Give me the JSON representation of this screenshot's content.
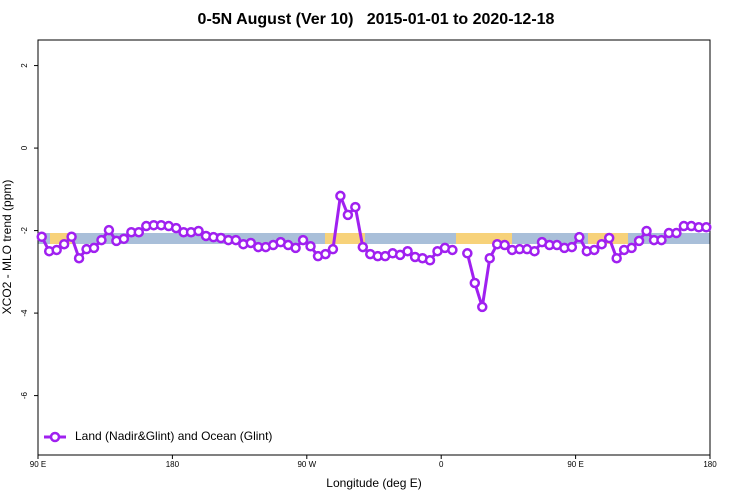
{
  "chart_data": {
    "type": "line",
    "title": "0-5N August (Ver 10)   2015-01-01 to 2020-12-18",
    "x_label": "Longitude (deg E)",
    "y_label": "XCO2 - MLO trend (ppm)",
    "xlim": [
      90,
      540
    ],
    "ylim": [
      -7.44,
      2.62
    ],
    "xticks": [
      {
        "value": 90,
        "label": "90 E"
      },
      180,
      {
        "value": 270,
        "label": "90 W"
      },
      {
        "value": 360,
        "label": "0"
      },
      {
        "value": 450,
        "label": "90 E"
      },
      {
        "value": 540,
        "label": "180"
      }
    ],
    "yticks": [
      -6,
      -4,
      -2,
      0,
      2
    ],
    "legend": "bottom-left",
    "x": [
      92.5,
      97.5,
      102.5,
      107.5,
      112.5,
      117.5,
      122.5,
      127.5,
      132.5,
      137.5,
      142.5,
      147.5,
      152.5,
      157.5,
      162.5,
      167.5,
      172.5,
      177.5,
      182.5,
      187.5,
      192.5,
      197.5,
      202.5,
      207.5,
      212.5,
      217.5,
      222.5,
      227.5,
      232.5,
      237.5,
      242.5,
      247.5,
      252.5,
      257.5,
      262.5,
      267.5,
      272.5,
      277.5,
      282.5,
      287.5,
      292.5,
      297.5,
      302.5,
      307.5,
      312.5,
      317.5,
      322.5,
      327.5,
      332.5,
      337.5,
      342.5,
      347.5,
      352.5,
      357.5,
      362.5,
      367.5,
      372.5,
      377.5,
      382.5,
      387.5,
      392.5,
      397.5,
      402.5,
      407.5,
      412.5,
      417.5,
      422.5,
      427.5,
      432.5,
      437.5,
      442.5,
      447.5,
      452.5,
      457.5,
      462.5,
      467.5,
      472.5,
      477.5,
      482.5,
      487.5,
      492.5,
      497.5,
      502.5,
      507.5,
      512.5,
      517.5,
      522.5,
      527.5,
      532.5,
      537.5
    ],
    "series": [
      {
        "name": "Land (Nadir&Glint) and Ocean (Glint)",
        "color": "#a020f0",
        "values": [
          -2.15,
          -2.5,
          -2.47,
          -2.33,
          -2.15,
          -2.67,
          -2.45,
          -2.42,
          -2.23,
          -1.99,
          -2.25,
          -2.2,
          -2.04,
          -2.04,
          -1.89,
          -1.87,
          -1.87,
          -1.89,
          -1.94,
          -2.04,
          -2.04,
          -2.01,
          -2.13,
          -2.16,
          -2.18,
          -2.23,
          -2.23,
          -2.33,
          -2.3,
          -2.4,
          -2.4,
          -2.35,
          -2.28,
          -2.35,
          -2.42,
          -2.23,
          -2.38,
          -2.62,
          -2.57,
          -2.45,
          -1.16,
          -1.62,
          -1.43,
          -2.4,
          -2.57,
          -2.62,
          -2.62,
          -2.55,
          -2.59,
          -2.5,
          -2.64,
          -2.67,
          -2.72,
          -2.5,
          -2.42,
          -2.47,
          null,
          -2.55,
          -3.27,
          -3.85,
          -2.67,
          -2.33,
          -2.35,
          -2.47,
          -2.45,
          -2.45,
          -2.5,
          -2.28,
          -2.35,
          -2.35,
          -2.42,
          -2.4,
          -2.16,
          -2.5,
          -2.47,
          -2.33,
          -2.18,
          -2.67,
          -2.47,
          -2.42,
          -2.25,
          -2.01,
          -2.23,
          -2.23,
          -2.06,
          -2.06,
          -1.89,
          -1.89,
          -1.92,
          -1.92
        ]
      }
    ]
  }
}
